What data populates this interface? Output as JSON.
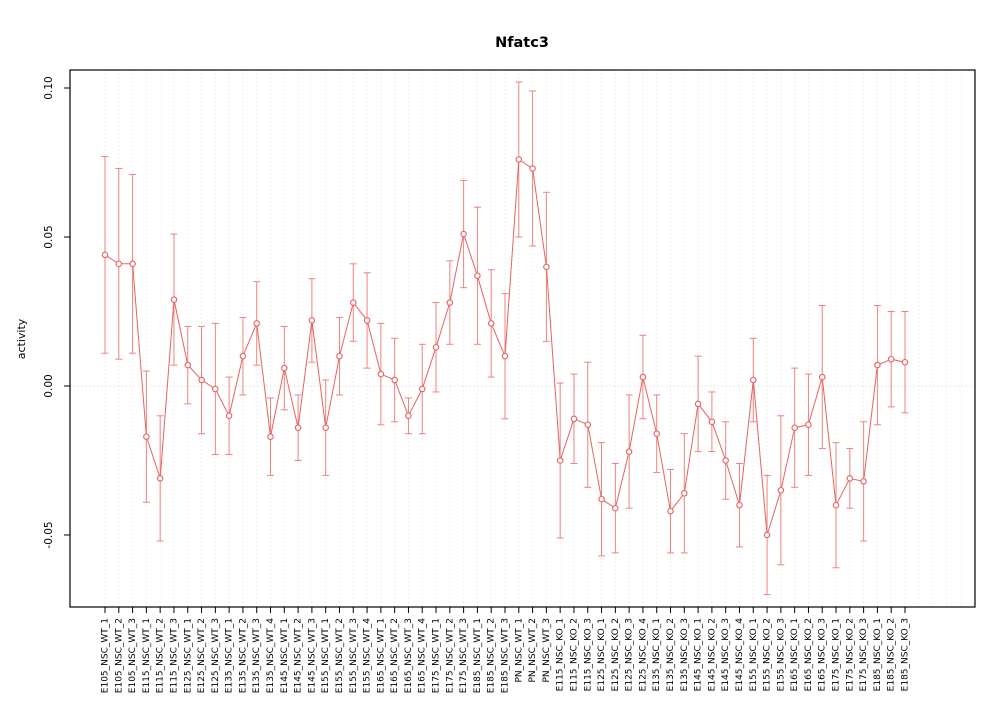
{
  "chart_data": {
    "type": "line",
    "title": "Nfatc3",
    "xlabel": "",
    "ylabel": "activity",
    "legend": "none",
    "grid": "vertical-dotted",
    "zero_line": true,
    "marker": "open-circle",
    "series_color": "#e9625c",
    "errorbar_color": "#ee837e",
    "grid_color": "#d9d9d9",
    "zero_line_color": "#e6bab6",
    "axis_color": "#000000",
    "ylim": [
      -0.074,
      0.106
    ],
    "yticks": [
      -0.05,
      0.0,
      0.05,
      0.1
    ],
    "ytick_labels": [
      "-0.05",
      "0.00",
      "0.05",
      "0.10"
    ],
    "categories": [
      "E105_NSC_WT_1",
      "E105_NSC_WT_2",
      "E105_NSC_WT_3",
      "E115_NSC_WT_1",
      "E115_NSC_WT_2",
      "E115_NSC_WT_3",
      "E125_NSC_WT_1",
      "E125_NSC_WT_2",
      "E125_NSC_WT_3",
      "E135_NSC_WT_1",
      "E135_NSC_WT_2",
      "E135_NSC_WT_3",
      "E135_NSC_WT_4",
      "E145_NSC_WT_1",
      "E145_NSC_WT_2",
      "E145_NSC_WT_3",
      "E155_NSC_WT_1",
      "E155_NSC_WT_2",
      "E155_NSC_WT_3",
      "E155_NSC_WT_4",
      "E165_NSC_WT_1",
      "E165_NSC_WT_2",
      "E165_NSC_WT_3",
      "E165_NSC_WT_4",
      "E175_NSC_WT_1",
      "E175_NSC_WT_2",
      "E175_NSC_WT_3",
      "E185_NSC_WT_1",
      "E185_NSC_WT_2",
      "E185_NSC_WT_3",
      "PN_NSC_WT_1",
      "PN_NSC_WT_2",
      "PN_NSC_WT_3",
      "E115_NSC_KO_1",
      "E115_NSC_KO_2",
      "E115_NSC_KO_3",
      "E125_NSC_KO_1",
      "E125_NSC_KO_2",
      "E125_NSC_KO_3",
      "E125_NSC_KO_4",
      "E135_NSC_KO_1",
      "E135_NSC_KO_2",
      "E135_NSC_KO_3",
      "E145_NSC_KO_1",
      "E145_NSC_KO_2",
      "E145_NSC_KO_3",
      "E145_NSC_KO_4",
      "E155_NSC_KO_1",
      "E155_NSC_KO_2",
      "E155_NSC_KO_3",
      "E165_NSC_KO_1",
      "E165_NSC_KO_2",
      "E165_NSC_KO_3",
      "E175_NSC_KO_1",
      "E175_NSC_KO_2",
      "E175_NSC_KO_3",
      "E185_NSC_KO_1",
      "E185_NSC_KO_2",
      "E185_NSC_KO_3"
    ],
    "values": [
      0.044,
      0.041,
      0.041,
      -0.017,
      -0.031,
      0.029,
      0.007,
      0.002,
      -0.001,
      -0.01,
      0.01,
      0.021,
      -0.017,
      0.006,
      -0.014,
      0.022,
      -0.014,
      0.01,
      0.028,
      0.022,
      0.004,
      0.002,
      -0.01,
      -0.001,
      0.013,
      0.028,
      0.051,
      0.037,
      0.021,
      0.01,
      0.076,
      0.073,
      0.04,
      -0.025,
      -0.011,
      -0.013,
      -0.038,
      -0.041,
      -0.022,
      0.003,
      -0.016,
      -0.042,
      -0.036,
      -0.006,
      -0.012,
      -0.025,
      -0.04,
      0.002,
      -0.05,
      -0.035,
      -0.014,
      -0.013,
      0.003,
      -0.04,
      -0.031,
      -0.032,
      0.007,
      0.009,
      0.008
    ],
    "errors": [
      0.033,
      0.032,
      0.03,
      0.022,
      0.021,
      0.022,
      0.013,
      0.018,
      0.022,
      0.013,
      0.013,
      0.014,
      0.013,
      0.014,
      0.011,
      0.014,
      0.016,
      0.013,
      0.013,
      0.016,
      0.017,
      0.014,
      0.006,
      0.015,
      0.015,
      0.014,
      0.018,
      0.023,
      0.018,
      0.021,
      0.026,
      0.026,
      0.025,
      0.026,
      0.015,
      0.021,
      0.019,
      0.015,
      0.019,
      0.014,
      0.013,
      0.014,
      0.02,
      0.016,
      0.01,
      0.013,
      0.014,
      0.014,
      0.02,
      0.025,
      0.02,
      0.017,
      0.024,
      0.021,
      0.01,
      0.02,
      0.02,
      0.016,
      0.017
    ]
  }
}
